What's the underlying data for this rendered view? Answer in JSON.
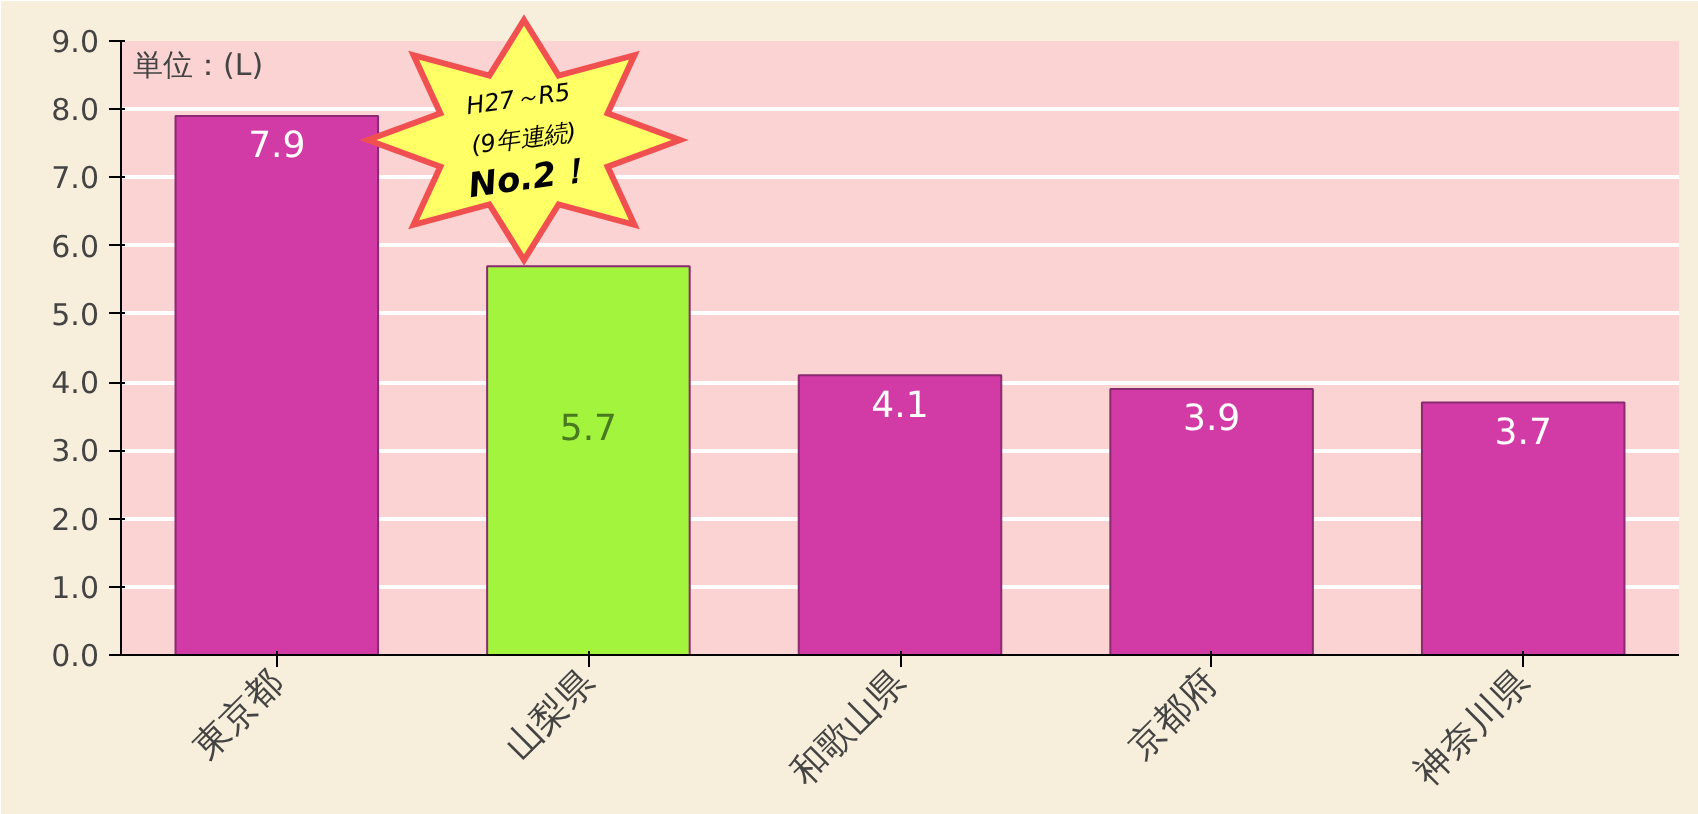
{
  "chart_data": {
    "type": "bar",
    "categories": [
      "東京都",
      "山梨県",
      "和歌山県",
      "京都府",
      "神奈川県"
    ],
    "values": [
      7.9,
      5.7,
      4.1,
      3.9,
      3.7
    ],
    "colors": [
      "#d23ba6",
      "#a2f53c",
      "#d23ba6",
      "#d23ba6",
      "#d23ba6"
    ],
    "ylim": [
      0,
      9
    ],
    "yticks": [
      {
        "value": 0,
        "label": "0.0"
      },
      {
        "value": 1,
        "label": "1.0"
      },
      {
        "value": 2,
        "label": "2.0"
      },
      {
        "value": 3,
        "label": "3.0"
      },
      {
        "value": 4,
        "label": "4.0"
      },
      {
        "value": 5,
        "label": "5.0"
      },
      {
        "value": 6,
        "label": "6.0"
      },
      {
        "value": 7,
        "label": "7.0"
      },
      {
        "value": 8,
        "label": "8.0"
      },
      {
        "value": 9,
        "label": "9.0"
      }
    ],
    "grid": "y",
    "data_labels": true,
    "annotations": [
      "単位：(L)",
      "H27～R5",
      "(9年連続)",
      "No.2！"
    ]
  }
}
